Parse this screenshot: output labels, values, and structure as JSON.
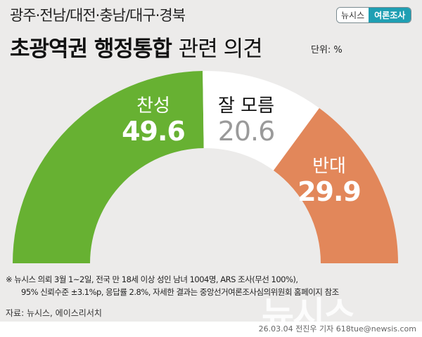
{
  "header": {
    "subtitle": "광주·전남/대전·충남/대구·경북",
    "title_bold": "초광역권 행정통합",
    "title_light": "관련 의견",
    "unit": "단위: %",
    "badge_left": "뉴시스",
    "badge_right": "여론조사"
  },
  "colors": {
    "agree": "#67b132",
    "dont_know": "#ffffff",
    "disagree": "#e2875a",
    "background": "#ecebea",
    "badge_accent": "#1f9fb3"
  },
  "chart_data": {
    "type": "pie",
    "subtype": "semicircle-donut",
    "title": "초광역권 행정통합 관련 의견",
    "subtitle": "광주·전남/대전·충남/대구·경북",
    "unit": "%",
    "categories": [
      "찬성",
      "잘 모름",
      "반대"
    ],
    "values": [
      49.6,
      20.6,
      29.9
    ],
    "colors": [
      "#67b132",
      "#ffffff",
      "#e2875a"
    ]
  },
  "labels": {
    "agree": {
      "name": "찬성",
      "value": "49.6"
    },
    "dont_know": {
      "name": "잘 모름",
      "value": "20.6"
    },
    "disagree": {
      "name": "반대",
      "value": "29.9"
    }
  },
  "footer": {
    "note_line1": "※ 뉴시스 의뢰 3월 1~2일, 전국 만 18세 이상 성인 남녀 1004명, ARS 조사(무선 100%),",
    "note_line2": "95% 신뢰수준 ±3.1%p, 응답률 2.8%, 자세한 결과는 중앙선거여론조사심의위원회 홈페이지 참조",
    "source": "자료: 뉴시스, 에이스리서치",
    "watermark": "뉴시스",
    "credit": "26.03.04 전진우 기자 618tue@newsis.com"
  }
}
